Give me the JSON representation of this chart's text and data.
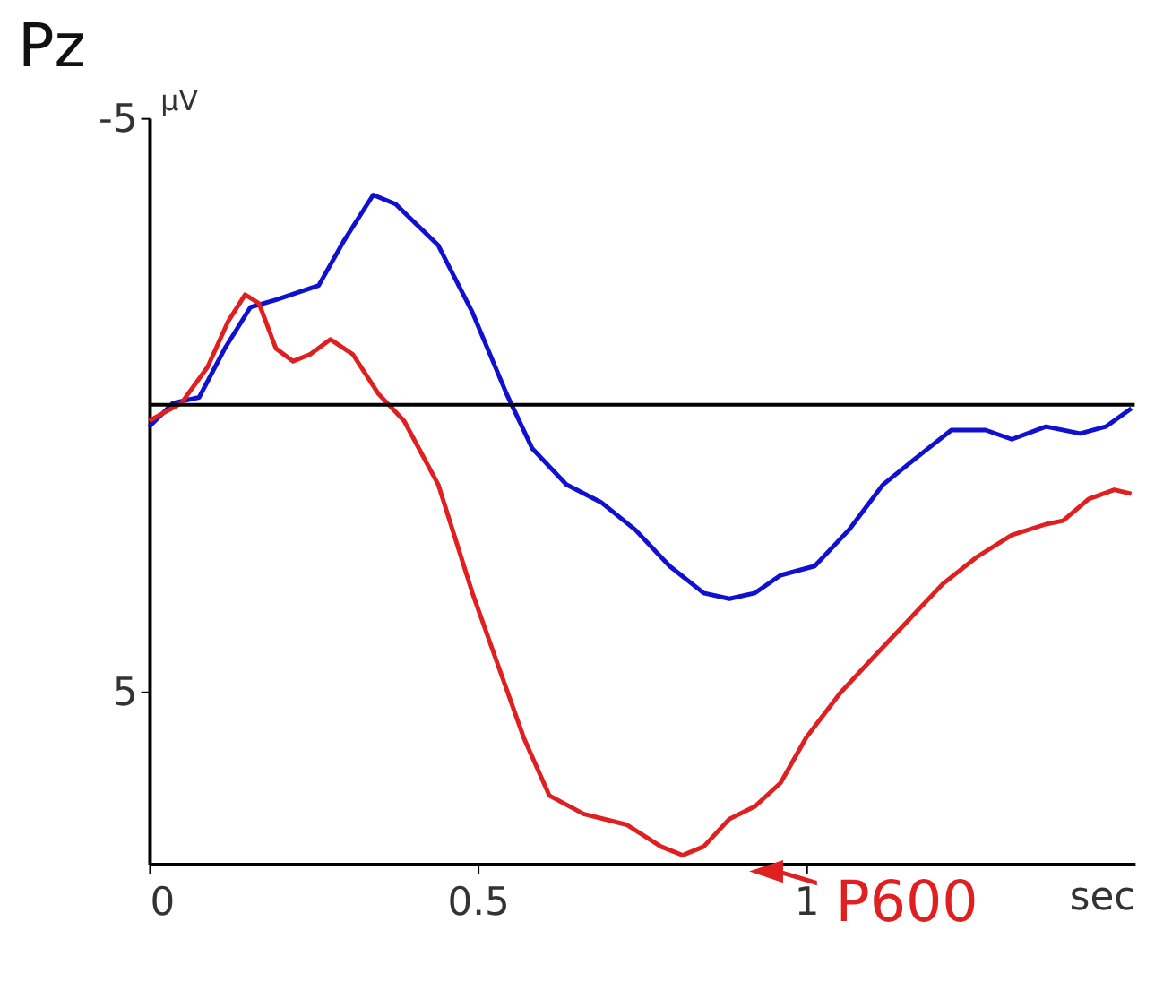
{
  "chart_data": {
    "type": "line",
    "title": "Pz",
    "xlabel": "sec",
    "ylabel": "µV",
    "xlim": [
      0,
      1.5
    ],
    "xticks": [
      0,
      0.5,
      1
    ],
    "ylim": [
      8,
      -5
    ],
    "yticks": [
      -5,
      5
    ],
    "grid": false,
    "ref_lines": [
      {
        "axis": "y",
        "value": 0,
        "color": "#000000"
      }
    ],
    "annotations": [
      {
        "text": "P600",
        "x": 0.85,
        "y": 7.7
      }
    ],
    "series": [
      {
        "color": "#1010d0",
        "x": [
          0,
          0.036,
          0.076,
          0.115,
          0.154,
          0.193,
          0.258,
          0.297,
          0.341,
          0.375,
          0.44,
          0.492,
          0.544,
          0.583,
          0.635,
          0.688,
          0.74,
          0.792,
          0.844,
          0.883,
          0.922,
          0.961,
          1.013,
          1.065,
          1.117,
          1.169,
          1.221,
          1.273,
          1.313,
          1.365,
          1.417,
          1.456,
          1.495
        ],
        "values": [
          0.38,
          -0.03,
          -0.13,
          -0.98,
          -1.7,
          -1.83,
          -2.08,
          -2.87,
          -3.66,
          -3.5,
          -2.78,
          -1.61,
          -0.19,
          0.76,
          1.39,
          1.7,
          2.18,
          2.81,
          3.28,
          3.38,
          3.28,
          2.97,
          2.81,
          2.18,
          1.39,
          0.91,
          0.44,
          0.44,
          0.6,
          0.38,
          0.5,
          0.38,
          0.06
        ]
      },
      {
        "color": "#e02020",
        "x": [
          0,
          0.049,
          0.089,
          0.12,
          0.146,
          0.167,
          0.193,
          0.219,
          0.245,
          0.276,
          0.31,
          0.349,
          0.388,
          0.44,
          0.492,
          0.531,
          0.57,
          0.609,
          0.661,
          0.727,
          0.779,
          0.812,
          0.844,
          0.883,
          0.922,
          0.961,
          1.0,
          1.052,
          1.104,
          1.156,
          1.208,
          1.26,
          1.313,
          1.365,
          1.391,
          1.43,
          1.469,
          1.495
        ],
        "values": [
          0.28,
          -0.03,
          -0.66,
          -1.45,
          -1.92,
          -1.77,
          -0.98,
          -0.76,
          -0.88,
          -1.14,
          -0.88,
          -0.19,
          0.28,
          1.39,
          3.28,
          4.54,
          5.8,
          6.81,
          7.13,
          7.32,
          7.7,
          7.85,
          7.7,
          7.22,
          7.0,
          6.59,
          5.8,
          5.02,
          4.38,
          3.75,
          3.12,
          2.65,
          2.27,
          2.08,
          2.02,
          1.64,
          1.48,
          1.55
        ]
      }
    ]
  }
}
